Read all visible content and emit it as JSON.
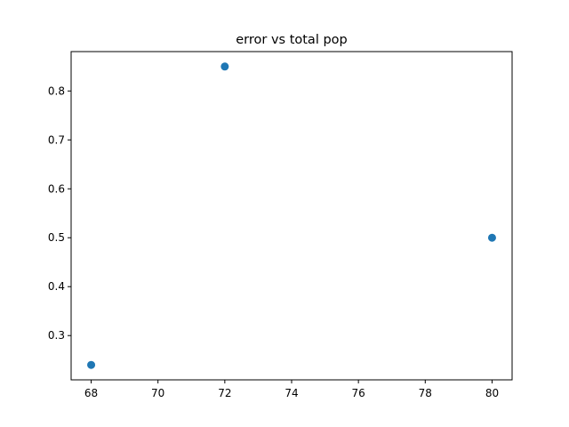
{
  "chart_data": {
    "type": "scatter",
    "title": "error vs total pop",
    "xlabel": "",
    "ylabel": "",
    "xlim": [
      67.4,
      80.6
    ],
    "ylim": [
      0.2095,
      0.8805
    ],
    "xticks": [
      68,
      70,
      72,
      74,
      76,
      78,
      80
    ],
    "yticks": [
      0.3,
      0.4,
      0.5,
      0.6,
      0.7,
      0.8
    ],
    "grid": false,
    "legend": "none",
    "series": [
      {
        "color": "#1f77b4",
        "points": [
          {
            "x": 68,
            "y": 0.24
          },
          {
            "x": 72,
            "y": 0.85
          },
          {
            "x": 80,
            "y": 0.5
          }
        ]
      }
    ]
  }
}
